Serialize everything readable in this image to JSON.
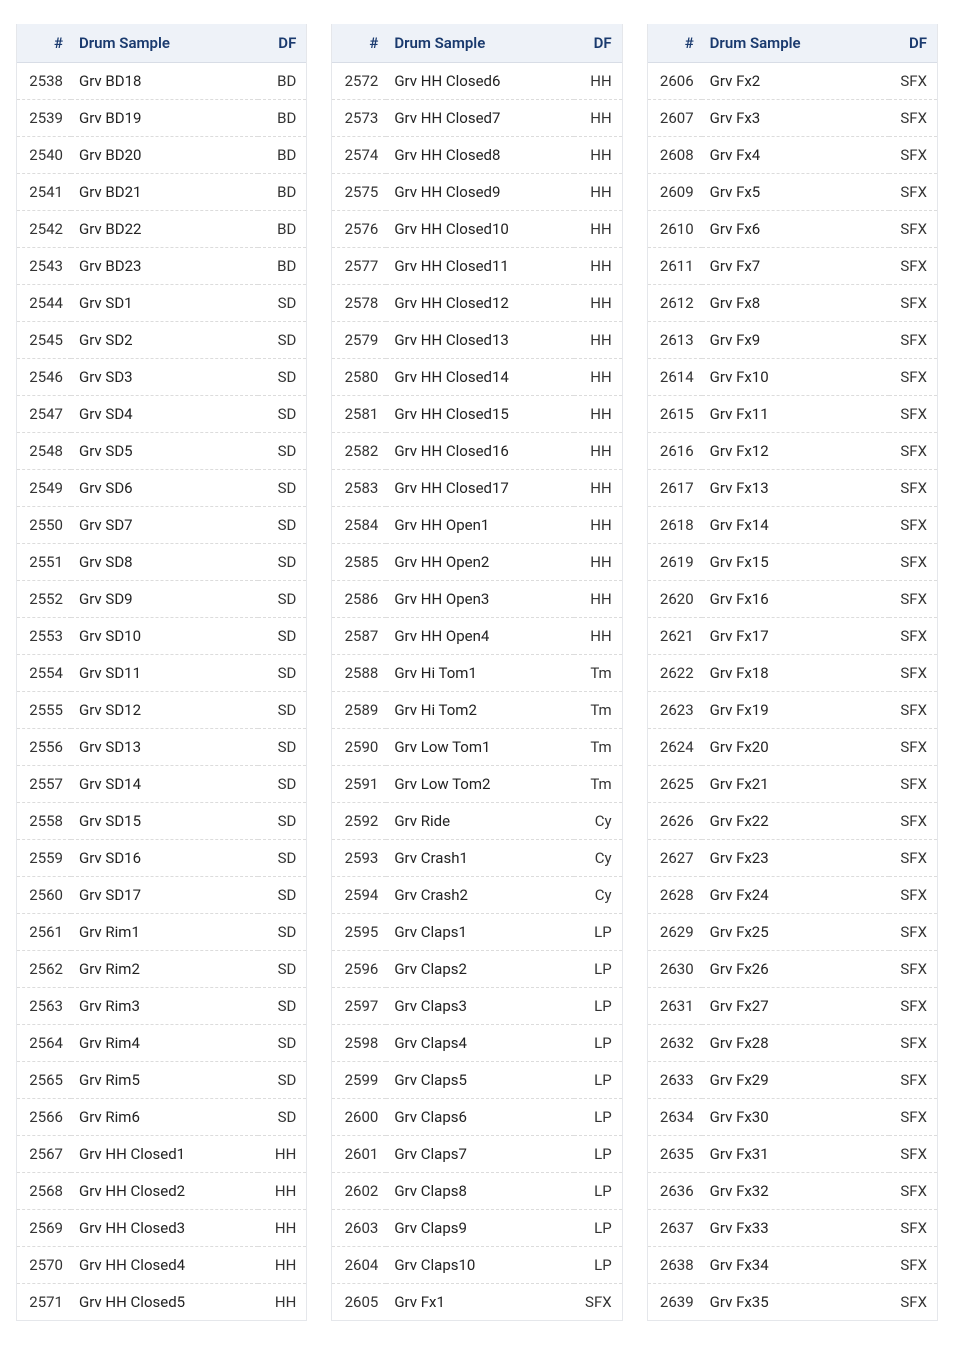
{
  "headers": {
    "num": "#",
    "sample": "Drum Sample",
    "df": "DF"
  },
  "style": {
    "header_bg": "#eef2f8",
    "header_color": "#1a3a6e",
    "border_color": "#e5e7eb",
    "row_divider": "#dcdcdc",
    "text_color": "#222222",
    "font_size_header": 15,
    "font_size_body": 15,
    "page_bg": "#ffffff"
  },
  "columns": [
    {
      "rows": [
        {
          "num": 2538,
          "sample": "Grv BD18",
          "df": "BD"
        },
        {
          "num": 2539,
          "sample": "Grv BD19",
          "df": "BD"
        },
        {
          "num": 2540,
          "sample": "Grv BD20",
          "df": "BD"
        },
        {
          "num": 2541,
          "sample": "Grv BD21",
          "df": "BD"
        },
        {
          "num": 2542,
          "sample": "Grv BD22",
          "df": "BD"
        },
        {
          "num": 2543,
          "sample": "Grv BD23",
          "df": "BD"
        },
        {
          "num": 2544,
          "sample": "Grv SD1",
          "df": "SD"
        },
        {
          "num": 2545,
          "sample": "Grv SD2",
          "df": "SD"
        },
        {
          "num": 2546,
          "sample": "Grv SD3",
          "df": "SD"
        },
        {
          "num": 2547,
          "sample": "Grv SD4",
          "df": "SD"
        },
        {
          "num": 2548,
          "sample": "Grv SD5",
          "df": "SD"
        },
        {
          "num": 2549,
          "sample": "Grv SD6",
          "df": "SD"
        },
        {
          "num": 2550,
          "sample": "Grv SD7",
          "df": "SD"
        },
        {
          "num": 2551,
          "sample": "Grv SD8",
          "df": "SD"
        },
        {
          "num": 2552,
          "sample": "Grv SD9",
          "df": "SD"
        },
        {
          "num": 2553,
          "sample": "Grv SD10",
          "df": "SD"
        },
        {
          "num": 2554,
          "sample": "Grv SD11",
          "df": "SD"
        },
        {
          "num": 2555,
          "sample": "Grv SD12",
          "df": "SD"
        },
        {
          "num": 2556,
          "sample": "Grv SD13",
          "df": "SD"
        },
        {
          "num": 2557,
          "sample": "Grv SD14",
          "df": "SD"
        },
        {
          "num": 2558,
          "sample": "Grv SD15",
          "df": "SD"
        },
        {
          "num": 2559,
          "sample": "Grv SD16",
          "df": "SD"
        },
        {
          "num": 2560,
          "sample": "Grv SD17",
          "df": "SD"
        },
        {
          "num": 2561,
          "sample": "Grv Rim1",
          "df": "SD"
        },
        {
          "num": 2562,
          "sample": "Grv Rim2",
          "df": "SD"
        },
        {
          "num": 2563,
          "sample": "Grv Rim3",
          "df": "SD"
        },
        {
          "num": 2564,
          "sample": "Grv Rim4",
          "df": "SD"
        },
        {
          "num": 2565,
          "sample": "Grv Rim5",
          "df": "SD"
        },
        {
          "num": 2566,
          "sample": "Grv Rim6",
          "df": "SD"
        },
        {
          "num": 2567,
          "sample": "Grv HH Closed1",
          "df": "HH"
        },
        {
          "num": 2568,
          "sample": "Grv HH Closed2",
          "df": "HH"
        },
        {
          "num": 2569,
          "sample": "Grv HH Closed3",
          "df": "HH"
        },
        {
          "num": 2570,
          "sample": "Grv HH Closed4",
          "df": "HH"
        },
        {
          "num": 2571,
          "sample": "Grv HH Closed5",
          "df": "HH"
        }
      ]
    },
    {
      "rows": [
        {
          "num": 2572,
          "sample": "Grv HH Closed6",
          "df": "HH"
        },
        {
          "num": 2573,
          "sample": "Grv HH Closed7",
          "df": "HH"
        },
        {
          "num": 2574,
          "sample": "Grv HH Closed8",
          "df": "HH"
        },
        {
          "num": 2575,
          "sample": "Grv HH Closed9",
          "df": "HH"
        },
        {
          "num": 2576,
          "sample": "Grv HH Closed10",
          "df": "HH"
        },
        {
          "num": 2577,
          "sample": "Grv HH Closed11",
          "df": "HH"
        },
        {
          "num": 2578,
          "sample": "Grv HH Closed12",
          "df": "HH"
        },
        {
          "num": 2579,
          "sample": "Grv HH Closed13",
          "df": "HH"
        },
        {
          "num": 2580,
          "sample": "Grv HH Closed14",
          "df": "HH"
        },
        {
          "num": 2581,
          "sample": "Grv HH Closed15",
          "df": "HH"
        },
        {
          "num": 2582,
          "sample": "Grv HH Closed16",
          "df": "HH"
        },
        {
          "num": 2583,
          "sample": "Grv HH Closed17",
          "df": "HH"
        },
        {
          "num": 2584,
          "sample": "Grv HH Open1",
          "df": "HH"
        },
        {
          "num": 2585,
          "sample": "Grv HH Open2",
          "df": "HH"
        },
        {
          "num": 2586,
          "sample": "Grv HH Open3",
          "df": "HH"
        },
        {
          "num": 2587,
          "sample": "Grv HH Open4",
          "df": "HH"
        },
        {
          "num": 2588,
          "sample": "Grv Hi Tom1",
          "df": "Tm"
        },
        {
          "num": 2589,
          "sample": "Grv Hi Tom2",
          "df": "Tm"
        },
        {
          "num": 2590,
          "sample": "Grv Low Tom1",
          "df": "Tm"
        },
        {
          "num": 2591,
          "sample": "Grv Low Tom2",
          "df": "Tm"
        },
        {
          "num": 2592,
          "sample": "Grv Ride",
          "df": "Cy"
        },
        {
          "num": 2593,
          "sample": "Grv Crash1",
          "df": "Cy"
        },
        {
          "num": 2594,
          "sample": "Grv Crash2",
          "df": "Cy"
        },
        {
          "num": 2595,
          "sample": "Grv Claps1",
          "df": "LP"
        },
        {
          "num": 2596,
          "sample": "Grv Claps2",
          "df": "LP"
        },
        {
          "num": 2597,
          "sample": "Grv Claps3",
          "df": "LP"
        },
        {
          "num": 2598,
          "sample": "Grv Claps4",
          "df": "LP"
        },
        {
          "num": 2599,
          "sample": "Grv Claps5",
          "df": "LP"
        },
        {
          "num": 2600,
          "sample": "Grv Claps6",
          "df": "LP"
        },
        {
          "num": 2601,
          "sample": "Grv Claps7",
          "df": "LP"
        },
        {
          "num": 2602,
          "sample": "Grv Claps8",
          "df": "LP"
        },
        {
          "num": 2603,
          "sample": "Grv Claps9",
          "df": "LP"
        },
        {
          "num": 2604,
          "sample": "Grv Claps10",
          "df": "LP"
        },
        {
          "num": 2605,
          "sample": "Grv Fx1",
          "df": "SFX"
        }
      ]
    },
    {
      "rows": [
        {
          "num": 2606,
          "sample": "Grv Fx2",
          "df": "SFX"
        },
        {
          "num": 2607,
          "sample": "Grv Fx3",
          "df": "SFX"
        },
        {
          "num": 2608,
          "sample": "Grv Fx4",
          "df": "SFX"
        },
        {
          "num": 2609,
          "sample": "Grv Fx5",
          "df": "SFX"
        },
        {
          "num": 2610,
          "sample": "Grv Fx6",
          "df": "SFX"
        },
        {
          "num": 2611,
          "sample": "Grv Fx7",
          "df": "SFX"
        },
        {
          "num": 2612,
          "sample": "Grv Fx8",
          "df": "SFX"
        },
        {
          "num": 2613,
          "sample": "Grv Fx9",
          "df": "SFX"
        },
        {
          "num": 2614,
          "sample": "Grv Fx10",
          "df": "SFX"
        },
        {
          "num": 2615,
          "sample": "Grv Fx11",
          "df": "SFX"
        },
        {
          "num": 2616,
          "sample": "Grv Fx12",
          "df": "SFX"
        },
        {
          "num": 2617,
          "sample": "Grv Fx13",
          "df": "SFX"
        },
        {
          "num": 2618,
          "sample": "Grv Fx14",
          "df": "SFX"
        },
        {
          "num": 2619,
          "sample": "Grv Fx15",
          "df": "SFX"
        },
        {
          "num": 2620,
          "sample": "Grv Fx16",
          "df": "SFX"
        },
        {
          "num": 2621,
          "sample": "Grv Fx17",
          "df": "SFX"
        },
        {
          "num": 2622,
          "sample": "Grv Fx18",
          "df": "SFX"
        },
        {
          "num": 2623,
          "sample": "Grv Fx19",
          "df": "SFX"
        },
        {
          "num": 2624,
          "sample": "Grv Fx20",
          "df": "SFX"
        },
        {
          "num": 2625,
          "sample": "Grv Fx21",
          "df": "SFX"
        },
        {
          "num": 2626,
          "sample": "Grv Fx22",
          "df": "SFX"
        },
        {
          "num": 2627,
          "sample": "Grv Fx23",
          "df": "SFX"
        },
        {
          "num": 2628,
          "sample": "Grv Fx24",
          "df": "SFX"
        },
        {
          "num": 2629,
          "sample": "Grv Fx25",
          "df": "SFX"
        },
        {
          "num": 2630,
          "sample": "Grv Fx26",
          "df": "SFX"
        },
        {
          "num": 2631,
          "sample": "Grv Fx27",
          "df": "SFX"
        },
        {
          "num": 2632,
          "sample": "Grv Fx28",
          "df": "SFX"
        },
        {
          "num": 2633,
          "sample": "Grv Fx29",
          "df": "SFX"
        },
        {
          "num": 2634,
          "sample": "Grv Fx30",
          "df": "SFX"
        },
        {
          "num": 2635,
          "sample": "Grv Fx31",
          "df": "SFX"
        },
        {
          "num": 2636,
          "sample": "Grv Fx32",
          "df": "SFX"
        },
        {
          "num": 2637,
          "sample": "Grv Fx33",
          "df": "SFX"
        },
        {
          "num": 2638,
          "sample": "Grv Fx34",
          "df": "SFX"
        },
        {
          "num": 2639,
          "sample": "Grv Fx35",
          "df": "SFX"
        }
      ]
    }
  ]
}
